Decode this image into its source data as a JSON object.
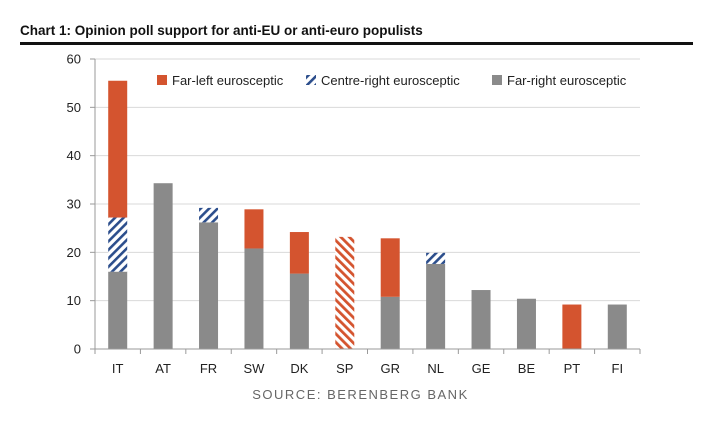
{
  "title": "Chart 1: Opinion poll support for anti-EU or anti-euro populists",
  "source": "SOURCE: BERENBERG BANK",
  "colors": {
    "far_left": "#d4542f",
    "centre_right": "#2c4e8c",
    "far_right": "#8a8a8a",
    "grid": "#d9d9d9",
    "axis": "#9a9a9a"
  },
  "chart_data": {
    "type": "bar",
    "stacked": true,
    "title": "Chart 1: Opinion poll support for anti-EU or anti-euro populists",
    "xlabel": "",
    "ylabel": "",
    "ylim": [
      0,
      60
    ],
    "yticks": [
      0,
      10,
      20,
      30,
      40,
      50,
      60
    ],
    "grid": true,
    "legend_position": "top-right",
    "categories": [
      "IT",
      "AT",
      "FR",
      "SW",
      "DK",
      "SP",
      "GR",
      "NL",
      "GE",
      "BE",
      "PT",
      "FI"
    ],
    "series": [
      {
        "name": "Far-right eurosceptic",
        "style": "solid-grey",
        "values": [
          16,
          34.3,
          26.2,
          20.8,
          15.6,
          0,
          10.8,
          17.6,
          12.2,
          10.4,
          0,
          9.2
        ]
      },
      {
        "name": "Centre-right eurosceptic",
        "style": "hatched-blue",
        "values": [
          11.2,
          0,
          3,
          0,
          0,
          0,
          0,
          2.3,
          0,
          0,
          0,
          0
        ]
      },
      {
        "name": "Far-left eurosceptic",
        "style": "solid-orange",
        "values": [
          28.3,
          0,
          0,
          8.1,
          8.6,
          0,
          12.1,
          0,
          0,
          0,
          9.2,
          0
        ]
      },
      {
        "name": "Far-left eurosceptic (hatched)",
        "style": "hatched-orange",
        "values": [
          0,
          0,
          0,
          0,
          0,
          23.2,
          0,
          0,
          0,
          0,
          0,
          0
        ]
      }
    ],
    "legend": [
      {
        "label": "Far-left eurosceptic",
        "style": "solid-orange"
      },
      {
        "label": "Centre-right eurosceptic",
        "style": "hatched-blue"
      },
      {
        "label": "Far-right eurosceptic",
        "style": "solid-grey"
      }
    ]
  }
}
